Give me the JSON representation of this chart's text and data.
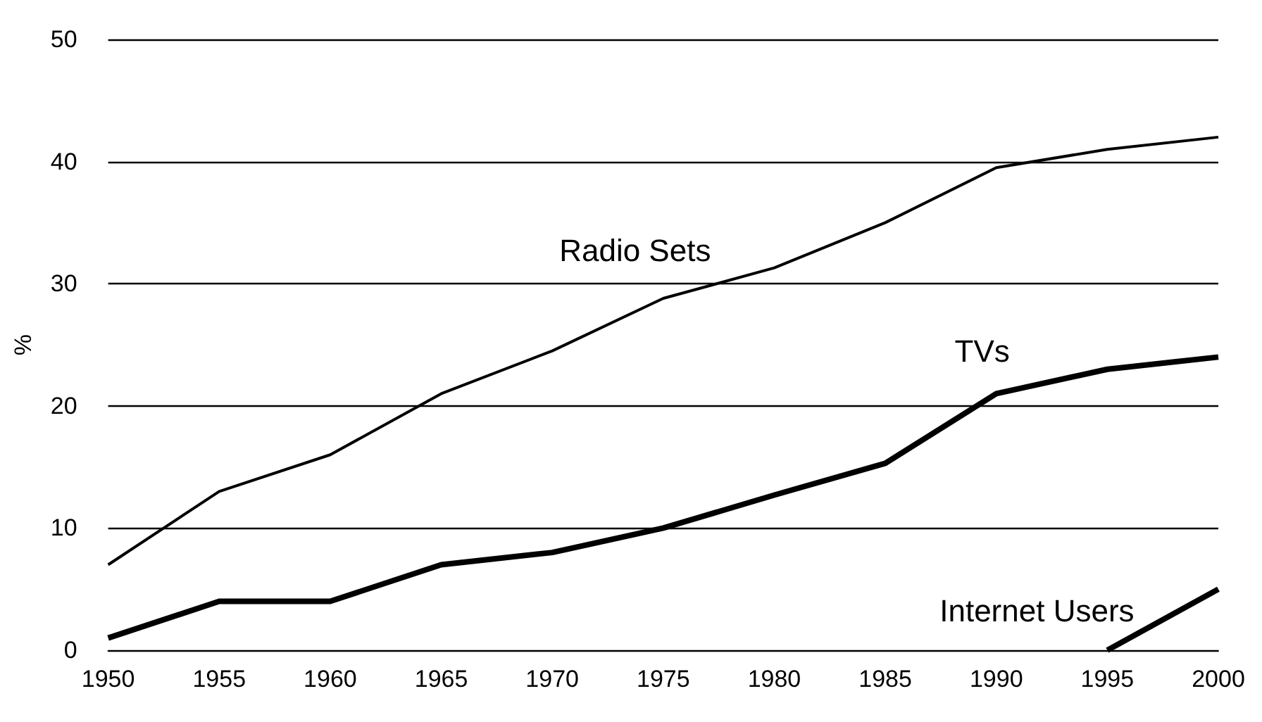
{
  "chart_data": {
    "type": "line",
    "ylabel": "%",
    "x": [
      1950,
      1955,
      1960,
      1965,
      1970,
      1975,
      1980,
      1985,
      1990,
      1995,
      2000
    ],
    "series": [
      {
        "name": "Radio Sets",
        "color": "#000000",
        "values": [
          7,
          13,
          16,
          21,
          24.5,
          28.8,
          31.3,
          35,
          39.5,
          41,
          42
        ]
      },
      {
        "name": "TVs",
        "color": "#000000",
        "values": [
          1,
          4,
          4,
          7,
          8,
          10,
          12.7,
          15.3,
          21,
          23,
          24
        ]
      },
      {
        "name": "Internet Users",
        "color": "#000000",
        "values": [
          null,
          null,
          null,
          null,
          null,
          null,
          null,
          null,
          null,
          0,
          5
        ]
      }
    ],
    "xlim": [
      1950,
      2000
    ],
    "xticks": [
      1950,
      1955,
      1960,
      1965,
      1970,
      1975,
      1980,
      1985,
      1990,
      1995,
      2000
    ],
    "ylim": [
      0,
      50
    ],
    "yticks": [
      0,
      10,
      20,
      30,
      40,
      50
    ],
    "grid": "y",
    "legend": false,
    "marker": "none",
    "line_style": "solid"
  }
}
